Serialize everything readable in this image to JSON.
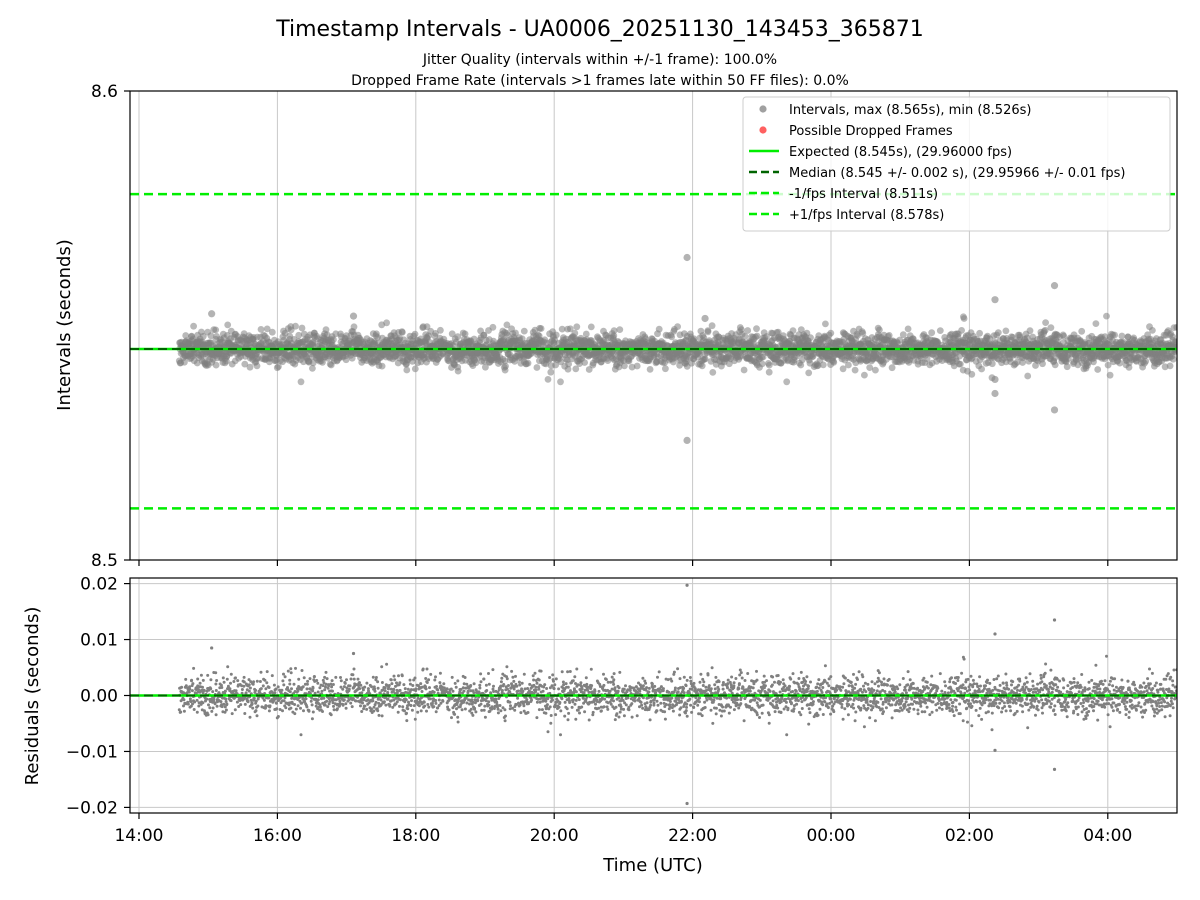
{
  "chart_data": {
    "type": "scatter",
    "title": "Timestamp Intervals - UA0006_20251130_143453_365871",
    "subtitle_lines": [
      "Jitter Quality (intervals within +/-1 frame): 100.0%",
      "Dropped Frame Rate (intervals >1 frames late within 50 FF files): 0.0%"
    ],
    "xlabel": "Time (UTC)",
    "x_ticks": [
      "14:00",
      "16:00",
      "18:00",
      "20:00",
      "22:00",
      "00:00",
      "02:00",
      "04:00"
    ],
    "x_tick_hours": [
      14,
      16,
      18,
      20,
      22,
      24,
      26,
      28
    ],
    "xlim_hours": [
      13.87,
      29.0
    ],
    "data_start_hour": 14.58,
    "top_panel": {
      "ylabel": "Intervals (seconds)",
      "ylim": [
        8.5,
        8.6
      ],
      "y_ticks": [
        "8.6",
        "8.5"
      ],
      "y_tick_values": [
        8.6,
        8.5
      ],
      "legend_position": "top-right",
      "legend": [
        {
          "label": "Intervals, max (8.565s), min (8.526s)",
          "kind": "marker",
          "color": "#a0a0a0"
        },
        {
          "label": "Possible Dropped Frames",
          "kind": "marker",
          "color": "#ff6060"
        },
        {
          "label": "Expected (8.545s), (29.96000 fps)",
          "kind": "solid",
          "color": "#00ee00"
        },
        {
          "label": "Median (8.545 +/- 0.002 s), (29.95966 +/- 0.01 fps)",
          "kind": "dashed",
          "color": "#006400"
        },
        {
          "label": "-1/fps Interval (8.511s)",
          "kind": "dashed",
          "color": "#00ee00"
        },
        {
          "label": "+1/fps Interval (8.578s)",
          "kind": "dashed",
          "color": "#00ee00"
        }
      ],
      "expected": 8.545,
      "median": 8.545,
      "lower_bound": 8.511,
      "upper_bound": 8.578,
      "outliers": [
        {
          "x": 21.92,
          "y": 8.5645
        },
        {
          "x": 21.92,
          "y": 8.5255
        },
        {
          "x": 26.37,
          "y": 8.5555
        },
        {
          "x": 26.37,
          "y": 8.5355
        },
        {
          "x": 26.37,
          "y": 8.5385
        },
        {
          "x": 27.23,
          "y": 8.5585
        },
        {
          "x": 27.23,
          "y": 8.532
        },
        {
          "x": 15.05,
          "y": 8.5525
        },
        {
          "x": 17.1,
          "y": 8.552
        },
        {
          "x": 22.18,
          "y": 8.5515
        }
      ]
    },
    "bottom_panel": {
      "ylabel": "Residuals (seconds)",
      "ylim": [
        -0.021,
        0.021
      ],
      "y_ticks": [
        "0.02",
        "0.01",
        "0.00",
        "−0.01",
        "−0.02"
      ],
      "y_tick_values": [
        0.02,
        0.01,
        0.0,
        -0.01,
        -0.02
      ],
      "outliers": [
        {
          "x": 21.92,
          "y": 0.0197
        },
        {
          "x": 21.92,
          "y": -0.0193
        },
        {
          "x": 26.37,
          "y": 0.011
        },
        {
          "x": 26.37,
          "y": -0.0098
        },
        {
          "x": 27.23,
          "y": 0.0135
        },
        {
          "x": 27.23,
          "y": -0.0132
        },
        {
          "x": 15.05,
          "y": 0.0085
        },
        {
          "x": 17.1,
          "y": 0.0075
        }
      ]
    },
    "point_color": "#808080",
    "grid": true
  }
}
